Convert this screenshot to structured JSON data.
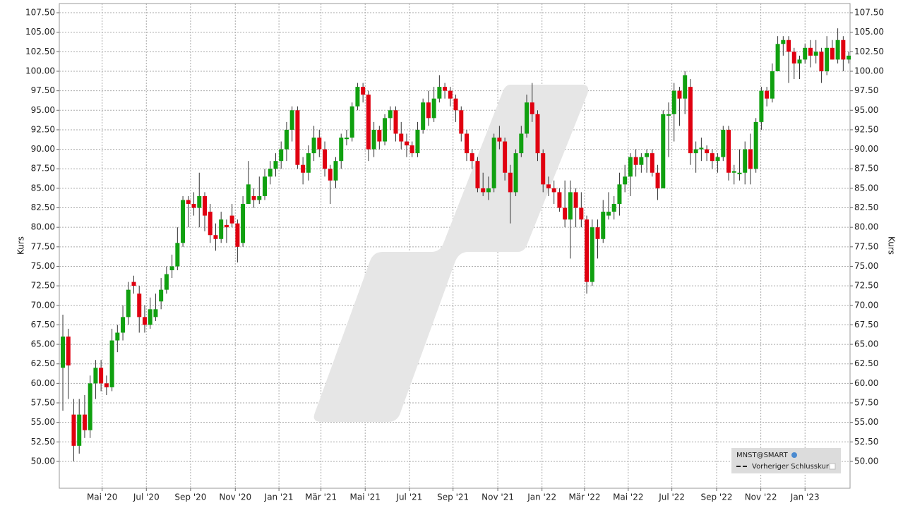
{
  "chart_data": {
    "type": "candlestick",
    "ylabel": "Kurs",
    "series": [
      {
        "name": "MNST@SMART",
        "up_color": "#10a010",
        "down_color": "#e00010",
        "ohlc": [
          [
            62,
            68.8,
            56.5,
            66
          ],
          [
            66,
            67,
            58,
            62.3
          ],
          [
            56,
            58,
            50,
            52
          ],
          [
            52,
            58,
            51,
            56
          ],
          [
            56,
            58.5,
            53,
            54
          ],
          [
            54,
            61,
            53,
            60
          ],
          [
            60,
            63,
            58,
            62
          ],
          [
            62,
            63,
            59,
            60
          ],
          [
            60,
            61,
            58.5,
            59.5
          ],
          [
            59.5,
            67,
            59,
            65.5
          ],
          [
            65.5,
            67.5,
            64,
            66.5
          ],
          [
            66.5,
            70,
            65.5,
            68.5
          ],
          [
            68.5,
            73,
            67.5,
            72
          ],
          [
            73,
            73.8,
            71.5,
            72.5
          ],
          [
            71.5,
            72.5,
            66.5,
            68.5
          ],
          [
            68.5,
            70,
            66.5,
            67.5
          ],
          [
            67.5,
            71,
            67,
            69.5
          ],
          [
            68.5,
            71.5,
            68,
            69.5
          ],
          [
            70.5,
            73.5,
            69.5,
            72
          ],
          [
            72,
            75,
            71.5,
            74
          ],
          [
            74.5,
            76.5,
            73.5,
            75
          ],
          [
            75,
            80,
            74.5,
            78
          ],
          [
            78,
            84,
            77.5,
            83.5
          ],
          [
            83.5,
            84,
            80,
            83
          ],
          [
            83,
            84.5,
            81.5,
            82.5
          ],
          [
            82.5,
            87,
            80,
            84
          ],
          [
            84,
            84.5,
            79.5,
            81.5
          ],
          [
            82,
            83,
            78,
            79
          ],
          [
            79,
            80.5,
            77,
            78.5
          ],
          [
            78.5,
            82,
            78,
            81
          ],
          [
            80.3,
            81,
            78,
            80
          ],
          [
            81.5,
            83,
            80,
            80.5
          ],
          [
            80.5,
            81,
            75.5,
            77.5
          ],
          [
            78,
            84,
            77.5,
            83
          ],
          [
            83,
            88.5,
            83,
            85.5
          ],
          [
            84,
            85,
            82.5,
            83.5
          ],
          [
            83.5,
            86.5,
            83,
            84
          ],
          [
            84,
            87.5,
            83.5,
            86.5
          ],
          [
            86.5,
            88.5,
            85.5,
            87.5
          ],
          [
            87.5,
            89.5,
            86.5,
            88.5
          ],
          [
            88.5,
            91,
            87.5,
            90
          ],
          [
            90,
            93.5,
            88.5,
            92.5
          ],
          [
            92.5,
            95.5,
            91,
            95
          ],
          [
            95,
            95.5,
            87.5,
            88
          ],
          [
            88,
            89,
            85.5,
            87
          ],
          [
            87,
            90.5,
            86,
            89.5
          ],
          [
            89.5,
            93,
            88.5,
            91.5
          ],
          [
            91.5,
            92.5,
            89,
            90
          ],
          [
            90,
            91,
            86.5,
            87.5
          ],
          [
            87.5,
            88,
            83,
            86
          ],
          [
            86,
            89,
            85,
            88.5
          ],
          [
            88.5,
            92,
            87.5,
            91.5
          ],
          [
            91.3,
            92.5,
            90.5,
            91.5
          ],
          [
            91.5,
            96,
            91,
            95.5
          ],
          [
            95.5,
            98.5,
            95,
            98
          ],
          [
            98,
            98.5,
            96,
            97
          ],
          [
            97,
            97.5,
            88.5,
            90
          ],
          [
            90,
            93.5,
            89,
            92.5
          ],
          [
            92.5,
            93,
            90,
            91
          ],
          [
            91,
            94.5,
            90.5,
            94
          ],
          [
            94,
            95.5,
            92.5,
            95
          ],
          [
            95,
            95.5,
            91,
            92
          ],
          [
            92,
            93.5,
            90,
            91
          ],
          [
            91,
            92,
            89,
            90.5
          ],
          [
            90.5,
            91,
            89,
            89.5
          ],
          [
            89.5,
            93.5,
            89,
            92.5
          ],
          [
            92.5,
            96.5,
            92,
            96
          ],
          [
            96,
            97.5,
            93,
            94
          ],
          [
            94,
            98,
            93.5,
            96.5
          ],
          [
            96.5,
            99.5,
            96,
            98
          ],
          [
            98,
            98.5,
            96.5,
            97.5
          ],
          [
            97.5,
            98,
            95.5,
            96.5
          ],
          [
            96.5,
            97,
            93.5,
            95
          ],
          [
            95,
            95.5,
            91,
            92
          ],
          [
            92,
            92.5,
            88.5,
            89.5
          ],
          [
            89.5,
            90,
            87.5,
            88.5
          ],
          [
            88.5,
            89,
            84.5,
            85
          ],
          [
            85,
            87,
            84,
            84.5
          ],
          [
            84.5,
            86.5,
            83.5,
            85
          ],
          [
            85,
            92,
            84.5,
            91.5
          ],
          [
            91.5,
            93,
            90,
            91
          ],
          [
            91,
            91.5,
            86,
            87
          ],
          [
            87,
            88,
            80.5,
            84.5
          ],
          [
            84.5,
            90,
            84,
            89.5
          ],
          [
            89.5,
            93,
            89,
            92
          ],
          [
            92,
            97,
            91.5,
            96
          ],
          [
            96,
            98.5,
            93.5,
            94.5
          ],
          [
            94.5,
            95,
            88.5,
            89.5
          ],
          [
            89.5,
            90,
            84.5,
            85.5
          ],
          [
            85.5,
            86.5,
            84,
            85
          ],
          [
            85,
            86,
            83,
            84.5
          ],
          [
            84.5,
            85,
            82,
            82.5
          ],
          [
            82.5,
            86,
            80,
            81
          ],
          [
            81,
            86,
            76,
            84.5
          ],
          [
            84.5,
            85,
            80,
            82.5
          ],
          [
            82.5,
            84.5,
            80,
            81
          ],
          [
            81,
            81.5,
            71.5,
            73
          ],
          [
            73,
            81,
            72.5,
            80
          ],
          [
            80,
            81,
            76,
            78.5
          ],
          [
            78.5,
            83.5,
            78,
            82
          ],
          [
            81.5,
            84.5,
            81,
            82
          ],
          [
            82,
            84,
            81,
            83
          ],
          [
            83,
            87,
            81.5,
            85.5
          ],
          [
            85.5,
            88,
            84.5,
            86.5
          ],
          [
            86.5,
            89.5,
            84,
            89
          ],
          [
            89,
            90,
            86.5,
            88
          ],
          [
            88,
            89.5,
            87,
            89
          ],
          [
            89,
            90,
            87,
            89.5
          ],
          [
            89.5,
            90,
            86.5,
            87
          ],
          [
            87,
            88,
            83.5,
            85
          ],
          [
            85,
            95,
            85,
            94.5
          ],
          [
            94.3,
            96,
            89,
            94.5
          ],
          [
            94.5,
            98.5,
            91,
            97.5
          ],
          [
            97.5,
            98,
            93,
            96.5
          ],
          [
            96.5,
            100,
            94.5,
            99.5
          ],
          [
            98,
            99,
            88,
            89.5
          ],
          [
            89.5,
            91,
            87,
            90
          ],
          [
            90,
            91.5,
            88.5,
            90.2
          ],
          [
            90,
            90.5,
            88.5,
            89.5
          ],
          [
            89.5,
            90,
            87.5,
            88.5
          ],
          [
            88.5,
            89.5,
            87,
            89
          ],
          [
            89,
            93,
            88.5,
            92.5
          ],
          [
            92.5,
            93,
            86,
            87
          ],
          [
            87,
            88,
            85.5,
            87.2
          ],
          [
            86.8,
            90,
            86,
            87
          ],
          [
            87,
            91,
            85.5,
            90
          ],
          [
            90,
            92,
            85.5,
            87.5
          ],
          [
            87.5,
            94,
            87,
            93.5
          ],
          [
            93.5,
            98,
            92.5,
            97.5
          ],
          [
            97.5,
            98,
            95.5,
            96.5
          ],
          [
            96.5,
            101,
            96,
            100
          ],
          [
            100,
            104.5,
            100,
            103.5
          ],
          [
            103.5,
            104.5,
            102,
            104
          ],
          [
            104,
            104.5,
            98.5,
            102.5
          ],
          [
            102.5,
            103,
            99,
            101
          ],
          [
            101,
            102,
            99,
            101.5
          ],
          [
            101.5,
            103.5,
            101,
            103
          ],
          [
            103,
            104,
            100.5,
            102
          ],
          [
            102,
            104,
            101,
            102.5
          ],
          [
            102.5,
            103,
            98.5,
            100
          ],
          [
            100,
            104.5,
            99.5,
            103
          ],
          [
            103,
            104,
            101.5,
            101.5
          ],
          [
            101.5,
            105.5,
            101,
            104
          ],
          [
            104,
            104.5,
            100,
            101.5
          ],
          [
            101.5,
            102.5,
            101,
            102
          ]
        ]
      }
    ],
    "reference_line": {
      "name": "Vorheriger Schlusskurs"
    },
    "xlim": [
      -0.65,
      144.25
    ],
    "xticks": [
      {
        "value": 7.2,
        "label": "Mai '20"
      },
      {
        "value": 15.3,
        "label": "Jul '20"
      },
      {
        "value": 23.4,
        "label": "Sep '20"
      },
      {
        "value": 31.6,
        "label": "Nov '20"
      },
      {
        "value": 39.6,
        "label": "Jan '21"
      },
      {
        "value": 47.3,
        "label": "Mär '21"
      },
      {
        "value": 55.4,
        "label": "Mai '21"
      },
      {
        "value": 63.5,
        "label": "Jul '21"
      },
      {
        "value": 71.5,
        "label": "Sep '21"
      },
      {
        "value": 79.7,
        "label": "Nov '21"
      },
      {
        "value": 87.8,
        "label": "Jan '22"
      },
      {
        "value": 95.6,
        "label": "Mär '22"
      },
      {
        "value": 103.6,
        "label": "Mai '22"
      },
      {
        "value": 111.6,
        "label": "Jul '22"
      },
      {
        "value": 119.8,
        "label": "Sep '22"
      },
      {
        "value": 127.9,
        "label": "Nov '22"
      },
      {
        "value": 136,
        "label": "Jan '23"
      }
    ],
    "ylim": [
      46.56,
      108.68
    ],
    "yticks": [
      {
        "value": 50,
        "label": "50.00"
      },
      {
        "value": 52.5,
        "label": "52.50"
      },
      {
        "value": 55,
        "label": "55.00"
      },
      {
        "value": 57.5,
        "label": "57.50"
      },
      {
        "value": 60,
        "label": "60.00"
      },
      {
        "value": 62.5,
        "label": "62.50"
      },
      {
        "value": 65,
        "label": "65.00"
      },
      {
        "value": 67.5,
        "label": "67.50"
      },
      {
        "value": 70,
        "label": "70.00"
      },
      {
        "value": 72.5,
        "label": "72.50"
      },
      {
        "value": 75,
        "label": "75.00"
      },
      {
        "value": 77.5,
        "label": "77.50"
      },
      {
        "value": 80,
        "label": "80.00"
      },
      {
        "value": 82.5,
        "label": "82.50"
      },
      {
        "value": 85,
        "label": "85.00"
      },
      {
        "value": 87.5,
        "label": "87.50"
      },
      {
        "value": 90,
        "label": "90.00"
      },
      {
        "value": 92.5,
        "label": "92.50"
      },
      {
        "value": 95,
        "label": "95.00"
      },
      {
        "value": 97.5,
        "label": "97.50"
      },
      {
        "value": 100,
        "label": "100.00"
      },
      {
        "value": 102.5,
        "label": "102.50"
      },
      {
        "value": 105,
        "label": "105.00"
      },
      {
        "value": 107.5,
        "label": "107.50"
      }
    ],
    "grid": true
  }
}
